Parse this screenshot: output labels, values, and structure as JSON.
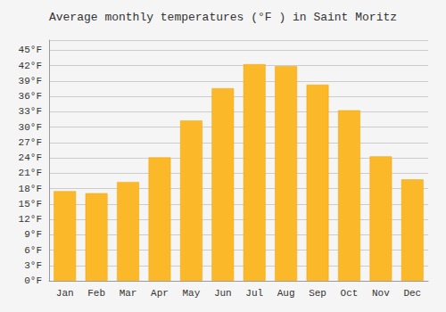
{
  "chart_data": {
    "type": "bar",
    "title": "Average monthly temperatures (°F ) in Saint Moritz",
    "categories": [
      "Jan",
      "Feb",
      "Mar",
      "Apr",
      "May",
      "Jun",
      "Jul",
      "Aug",
      "Sep",
      "Oct",
      "Nov",
      "Dec"
    ],
    "values": [
      17.5,
      17.1,
      19.3,
      24.1,
      31.3,
      37.6,
      42.3,
      41.9,
      38.3,
      33.3,
      24.3,
      19.8
    ],
    "color": "#FBB829",
    "ylim": [
      0,
      47
    ],
    "yticks": [
      {
        "value": 0,
        "label": "0°F"
      },
      {
        "value": 3,
        "label": "3°F"
      },
      {
        "value": 6,
        "label": "6°F"
      },
      {
        "value": 9,
        "label": "9°F"
      },
      {
        "value": 12,
        "label": "12°F"
      },
      {
        "value": 15,
        "label": "15°F"
      },
      {
        "value": 18,
        "label": "18°F"
      },
      {
        "value": 21,
        "label": "21°F"
      },
      {
        "value": 24,
        "label": "24°F"
      },
      {
        "value": 27,
        "label": "27°F"
      },
      {
        "value": 30,
        "label": "30°F"
      },
      {
        "value": 33,
        "label": "33°F"
      },
      {
        "value": 36,
        "label": "36°F"
      },
      {
        "value": 39,
        "label": "39°F"
      },
      {
        "value": 42,
        "label": "42°F"
      },
      {
        "value": 45,
        "label": "45°F"
      }
    ],
    "grid": true
  }
}
